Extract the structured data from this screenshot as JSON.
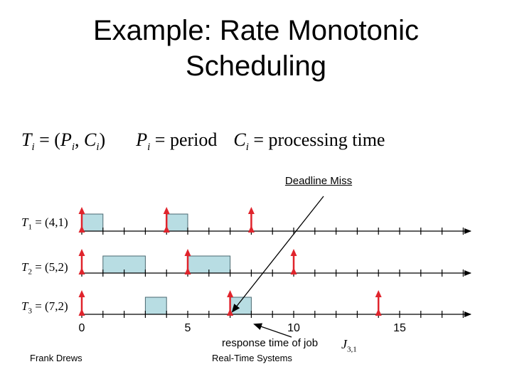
{
  "title_line1": "Example: Rate Monotonic",
  "title_line2": "Scheduling",
  "formula": {
    "task_symbol": "T",
    "sub_i": "i",
    "eq_open": " = (",
    "period_symbol": "P",
    "comma": ", ",
    "cost_symbol": "C",
    "close": ")",
    "period_text": " = period",
    "processing_text": " = processing time"
  },
  "tasks": [
    {
      "symbol": "T",
      "index": "1",
      "params": " = (4,1)",
      "period": 4,
      "cost": 1
    },
    {
      "symbol": "T",
      "index": "2",
      "params": " = (5,2)",
      "period": 5,
      "cost": 2
    },
    {
      "symbol": "T",
      "index": "3",
      "params": " = (7,2)",
      "period": 7,
      "cost": 2
    }
  ],
  "schedule": [
    {
      "task": 1,
      "intervals": [
        [
          0,
          1
        ],
        [
          4,
          5
        ]
      ],
      "releases": [
        0,
        4,
        8
      ]
    },
    {
      "task": 2,
      "intervals": [
        [
          1,
          3
        ],
        [
          5,
          7
        ]
      ],
      "releases": [
        0,
        5,
        10
      ]
    },
    {
      "task": 3,
      "intervals": [
        [
          3,
          4
        ],
        [
          7,
          8
        ]
      ],
      "releases": [
        0,
        7,
        14
      ]
    }
  ],
  "time_range": [
    0,
    18
  ],
  "tick_labels": [
    "0",
    "5",
    "10",
    "15"
  ],
  "tick_values": [
    0,
    5,
    10,
    15
  ],
  "deadline_label": "Deadline Miss",
  "response_label": "response time of job",
  "job_symbol": "J",
  "job_index": "3,1",
  "colors": {
    "block_fill": "#b8dde3",
    "block_stroke": "#4a6870",
    "arrow": "#e0242c",
    "axis": "#000000"
  },
  "footer": {
    "left": "Frank Drews",
    "center": "Real-Time Systems"
  }
}
